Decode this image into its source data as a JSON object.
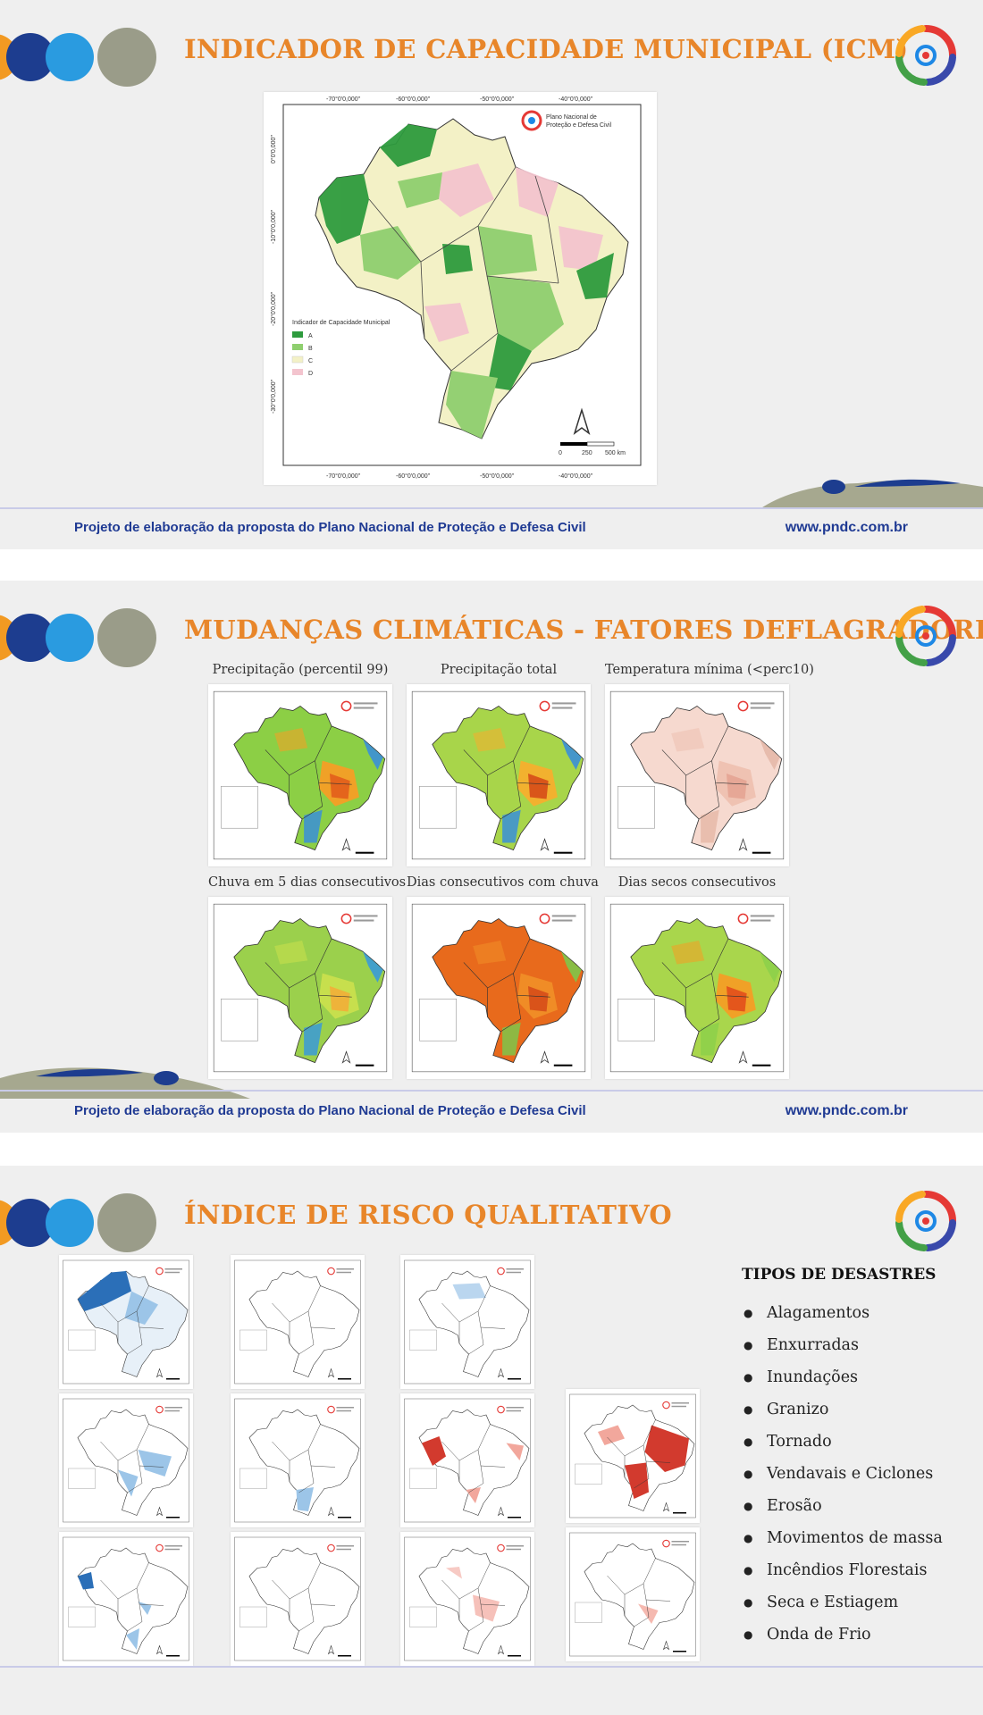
{
  "colors": {
    "title": "#e8862a",
    "footer": "#1f3a93",
    "navy": "#1d3d8f",
    "blue": "#2a9be0",
    "orange": "#f29a22",
    "sage": "#9a9c89"
  },
  "footer": {
    "text": "Projeto de elaboração da proposta do Plano Nacional de Proteção e Defesa Civil",
    "url": "www.pndc.com.br"
  },
  "slide1": {
    "title": "INDICADOR DE CAPACIDADE MUNICIPAL (ICM)",
    "map": {
      "top_labels": [
        "-70°0'0,000\"",
        "-60°0'0,000\"",
        "-50°0'0,000\"",
        "-40°0'0,000\""
      ],
      "left_labels": [
        "0°0'0,000\"",
        "-10°0'0,000\"",
        "-20°0'0,000\"",
        "-30°0'0,000\""
      ],
      "logo_text_1": "Plano Nacional de",
      "logo_text_2": "Proteção e Defesa Civil",
      "legend_title": "Indicador de Capacidade Municipal",
      "legend": [
        {
          "label": "A",
          "color": "#2e9b3e"
        },
        {
          "label": "B",
          "color": "#8fcf6f"
        },
        {
          "label": "C",
          "color": "#f3f1c6"
        },
        {
          "label": "D",
          "color": "#f3c4ce"
        }
      ],
      "scale_labels": [
        "0",
        "250",
        "500 km"
      ]
    }
  },
  "slide2": {
    "title": "MUDANÇAS CLIMÁTICAS - FATORES DEFLAGRADORES",
    "maps": [
      {
        "caption": "Precipitação (percentil 99)",
        "base": "#8ccf45",
        "blob": "#f0a127",
        "blob2": "#e4641c",
        "edge": "#3a8fd8"
      },
      {
        "caption": "Precipitação total",
        "base": "#a8d54a",
        "blob": "#f2b12f",
        "blob2": "#d9561a",
        "edge": "#3a8fd8"
      },
      {
        "caption": "Temperatura mínima (<perc10)",
        "base": "#f6d9cf",
        "blob": "#efc2b2",
        "blob2": "#e6a796",
        "edge": "#e6b8a8"
      },
      {
        "caption": "Chuva em 5 dias consecutivos",
        "base": "#9bd04c",
        "blob": "#c7df4d",
        "blob2": "#eeb33a",
        "edge": "#3a9ad8"
      },
      {
        "caption": "Dias consecutivos com chuva",
        "base": "#e86a1c",
        "blob": "#f08c26",
        "blob2": "#d9531a",
        "edge": "#7ec64a"
      },
      {
        "caption": "Dias secos consecutivos",
        "base": "#a9d64c",
        "blob": "#f0a127",
        "blob2": "#e4561c",
        "edge": "#8dd04a"
      }
    ]
  },
  "slide3": {
    "title": "ÍNDICE DE RISCO QUALITATIVO",
    "disasters_title": "TIPOS DE DESASTRES",
    "disasters": [
      "Alagamentos",
      "Enxurradas",
      "Inundações",
      "Granizo",
      "Tornado",
      "Vendavais e Ciclones",
      "Erosão",
      "Movimentos de massa",
      "Incêndios Florestais",
      "Seca e Estiagem",
      "Onda de Frio"
    ]
  }
}
